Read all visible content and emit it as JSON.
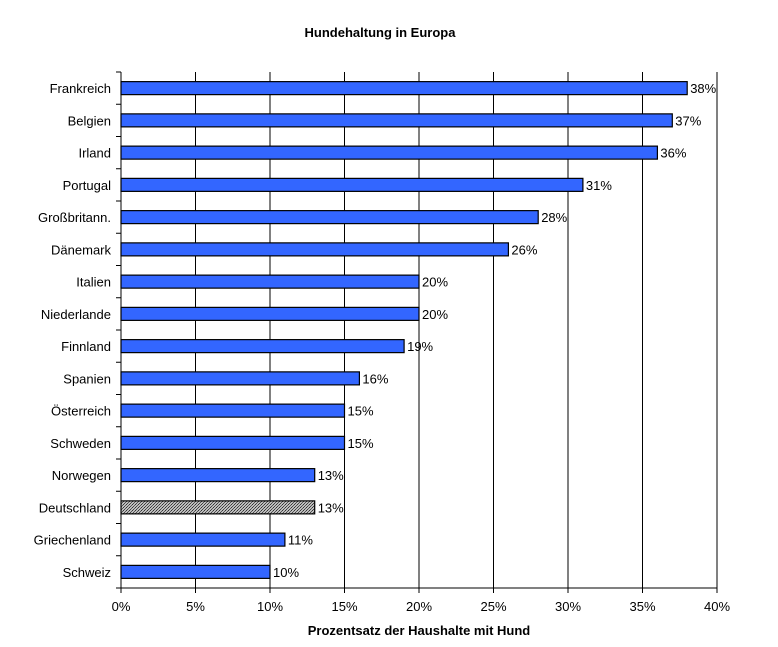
{
  "chart_data": {
    "type": "bar",
    "orientation": "horizontal",
    "title": "Hundehaltung in Europa",
    "xlabel": "Prozentsatz der Haushalte mit Hund",
    "ylabel": "",
    "xlim": [
      0,
      40
    ],
    "xticks": [
      "0%",
      "5%",
      "10%",
      "15%",
      "20%",
      "25%",
      "30%",
      "35%",
      "40%"
    ],
    "grid": "vertical",
    "categories": [
      "Frankreich",
      "Belgien",
      "Irland",
      "Portugal",
      "Großbritann.",
      "Dänemark",
      "Italien",
      "Niederlande",
      "Finnland",
      "Spanien",
      "Österreich",
      "Schweden",
      "Norwegen",
      "Deutschland",
      "Griechenland",
      "Schweiz"
    ],
    "values": [
      38,
      37,
      36,
      31,
      28,
      26,
      20,
      20,
      19,
      16,
      15,
      15,
      13,
      13,
      11,
      10
    ],
    "data_labels": [
      "38%",
      "37%",
      "36%",
      "31%",
      "28%",
      "26%",
      "20%",
      "20%",
      "19%",
      "16%",
      "15%",
      "15%",
      "13%",
      "13%",
      "11%",
      "10%"
    ],
    "highlight": "Deutschland",
    "colors": {
      "bar": "#3366ff",
      "highlight": "#999999",
      "outline": "#000000"
    }
  }
}
